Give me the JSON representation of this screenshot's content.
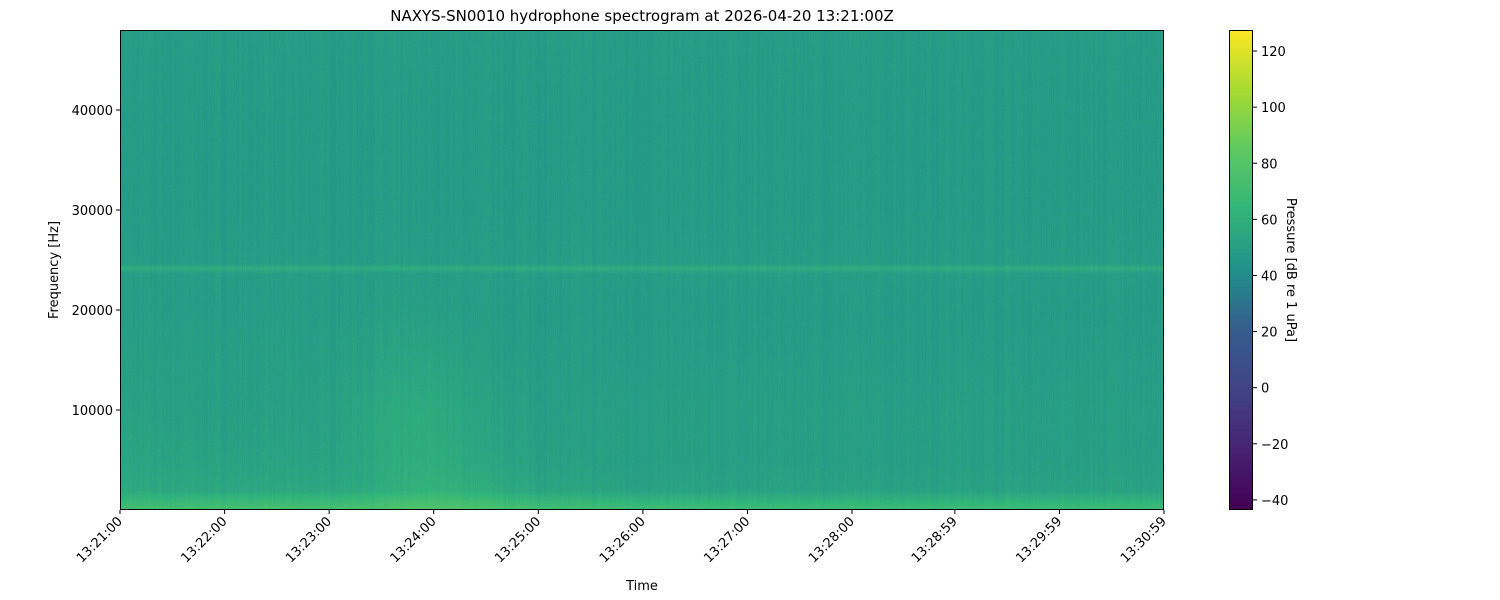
{
  "chart_data": {
    "type": "heatmap",
    "title": "NAXYS-SN0010 hydrophone spectrogram at 2026-04-20 13:21:00Z",
    "xlabel": "Time",
    "ylabel": "Frequency [Hz]",
    "colorbar_label": "Pressure [dB re 1 uPa]",
    "colormap": "viridis",
    "x_ticks": [
      "13:21:00",
      "13:22:00",
      "13:23:00",
      "13:24:00",
      "13:25:00",
      "13:26:00",
      "13:27:00",
      "13:28:00",
      "13:28:59",
      "13:29:59",
      "13:30:59"
    ],
    "y_ticks": [
      10000,
      20000,
      30000,
      40000
    ],
    "colorbar_ticks": [
      -40,
      -20,
      0,
      20,
      40,
      60,
      80,
      100,
      120
    ],
    "xlim": [
      "13:21:00",
      "13:30:59"
    ],
    "ylim": [
      0,
      48000
    ],
    "clim": [
      -43.6,
      127.5
    ],
    "grid": false,
    "times": [
      "13:21:00",
      "13:22:00",
      "13:23:00",
      "13:23:30",
      "13:24:00",
      "13:24:30",
      "13:25:00",
      "13:26:00",
      "13:27:00",
      "13:28:00",
      "13:29:00",
      "13:30:00",
      "13:30:59"
    ],
    "frequencies": [
      0,
      500,
      2000,
      5000,
      10000,
      15000,
      20000,
      23700,
      24200,
      24700,
      30000,
      40000,
      48000
    ],
    "values_db": [
      [
        72,
        74,
        74,
        76,
        78,
        76,
        73,
        72,
        71,
        71,
        71,
        71,
        71
      ],
      [
        68,
        70,
        70,
        73,
        76,
        72,
        68,
        66,
        65,
        65,
        65,
        65,
        65
      ],
      [
        56,
        55,
        55,
        58,
        62,
        58,
        54,
        52,
        52,
        52,
        52,
        52,
        52
      ],
      [
        53,
        52,
        52,
        56,
        58,
        54,
        51,
        50,
        50,
        50,
        50,
        50,
        50
      ],
      [
        51,
        50,
        51,
        56,
        57,
        52,
        50,
        50,
        50,
        50,
        50,
        50,
        50
      ],
      [
        50,
        50,
        50,
        52,
        53,
        50,
        49,
        49,
        49,
        49,
        49,
        49,
        49
      ],
      [
        49,
        49,
        49,
        50,
        50,
        49,
        48,
        48,
        48,
        48,
        48,
        48,
        48
      ],
      [
        49,
        49,
        49,
        49,
        49,
        49,
        49,
        49,
        49,
        49,
        49,
        49,
        49
      ],
      [
        58,
        58,
        58,
        58,
        58,
        58,
        58,
        58,
        58,
        58,
        58,
        58,
        58
      ],
      [
        49,
        49,
        49,
        49,
        49,
        49,
        49,
        49,
        49,
        49,
        49,
        49,
        49
      ],
      [
        48,
        48,
        48,
        48,
        48,
        48,
        48,
        48,
        48,
        48,
        48,
        48,
        48
      ],
      [
        48,
        48,
        48,
        48,
        48,
        48,
        48,
        48,
        48,
        48,
        48,
        48,
        48
      ],
      [
        49,
        49,
        49,
        49,
        49,
        49,
        49,
        49,
        49,
        49,
        49,
        49,
        49
      ]
    ]
  }
}
